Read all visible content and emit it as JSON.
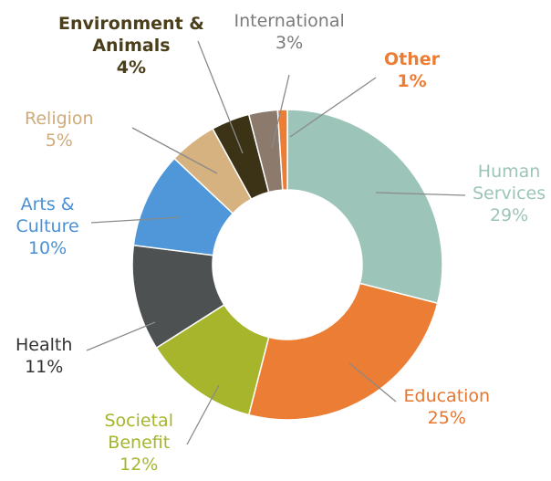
{
  "chart_data": {
    "type": "pie",
    "donut": true,
    "slices": [
      {
        "label": "Human Services",
        "label_lines": [
          "Human",
          "Services"
        ],
        "value_text": "29%",
        "value": 29,
        "color": "#9dc4b8",
        "text_color": "#9dc4b8"
      },
      {
        "label": "Education",
        "label_lines": [
          "Education"
        ],
        "value_text": "25%",
        "value": 25,
        "color": "#ec7d34",
        "text_color": "#e8752d"
      },
      {
        "label": "Societal Benefit",
        "label_lines": [
          "Societal",
          "Benefit"
        ],
        "value_text": "12%",
        "value": 12,
        "color": "#a6b52c",
        "text_color": "#a6b52c"
      },
      {
        "label": "Health",
        "label_lines": [
          "Health"
        ],
        "value_text": "11%",
        "value": 11,
        "color": "#4e5152",
        "text_color": "#333333"
      },
      {
        "label": "Arts & Culture",
        "label_lines": [
          "Arts &",
          "Culture"
        ],
        "value_text": "10%",
        "value": 10,
        "color": "#4f97d8",
        "text_color": "#4a90d2"
      },
      {
        "label": "Religion",
        "label_lines": [
          "Religion"
        ],
        "value_text": "5%",
        "value": 5,
        "color": "#d7b281",
        "text_color": "#d0ab7a"
      },
      {
        "label": "Environment & Animals",
        "label_lines": [
          "Environment &",
          "Animals"
        ],
        "value_text": "4%",
        "value": 4,
        "color": "#3c3216",
        "text_color": "#4a3f1a"
      },
      {
        "label": "International",
        "label_lines": [
          "International"
        ],
        "value_text": "3%",
        "value": 3,
        "color": "#8c7a6c",
        "text_color": "#7a7a7a"
      },
      {
        "label": "Other",
        "label_lines": [
          "Other"
        ],
        "value_text": "1%",
        "value": 1,
        "color": "#ec7d34",
        "text_color": "#ec7d34"
      }
    ]
  }
}
